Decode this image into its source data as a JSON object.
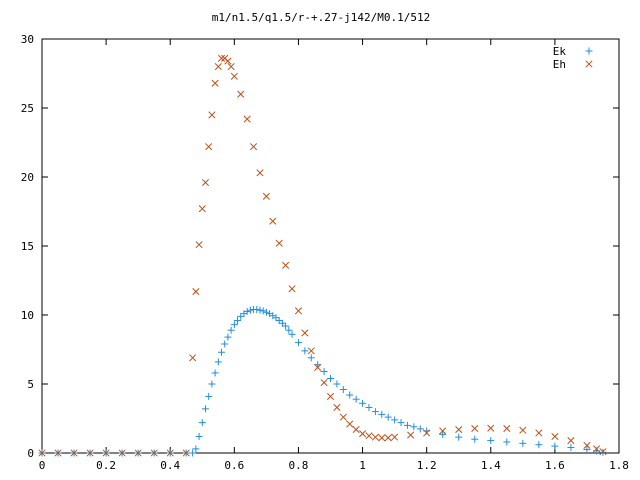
{
  "chart_data": {
    "type": "scatter",
    "title": "m1/n1.5/q1.5/r-+.27-j142/M0.1/512",
    "xlabel": "",
    "ylabel": "",
    "xlim": [
      0,
      1.8
    ],
    "ylim": [
      0,
      30
    ],
    "x_ticks": [
      0,
      0.2,
      0.4,
      0.6,
      0.8,
      1,
      1.2,
      1.4,
      1.6,
      1.8
    ],
    "x_tick_labels": [
      "0",
      "0.2",
      "0.4",
      "0.6",
      "0.8",
      "1",
      "1.2",
      "1.4",
      "1.6",
      "1.8"
    ],
    "y_ticks": [
      0,
      5,
      10,
      15,
      20,
      25,
      30
    ],
    "y_tick_labels": [
      "0",
      "5",
      "10",
      "15",
      "20",
      "25",
      "30"
    ],
    "grid": false,
    "legend_position": "top-right",
    "series": [
      {
        "name": "Ek",
        "marker": "plus",
        "color": "#1f8fe0",
        "x": [
          0.0,
          0.05,
          0.1,
          0.15,
          0.2,
          0.25,
          0.3,
          0.35,
          0.4,
          0.45,
          0.47,
          0.48,
          0.49,
          0.5,
          0.51,
          0.52,
          0.53,
          0.54,
          0.55,
          0.56,
          0.57,
          0.58,
          0.59,
          0.6,
          0.61,
          0.62,
          0.63,
          0.64,
          0.65,
          0.66,
          0.67,
          0.68,
          0.69,
          0.7,
          0.71,
          0.72,
          0.73,
          0.74,
          0.75,
          0.76,
          0.77,
          0.78,
          0.8,
          0.82,
          0.84,
          0.86,
          0.88,
          0.9,
          0.92,
          0.94,
          0.96,
          0.98,
          1.0,
          1.02,
          1.04,
          1.06,
          1.08,
          1.1,
          1.12,
          1.14,
          1.16,
          1.18,
          1.2,
          1.25,
          1.3,
          1.35,
          1.4,
          1.45,
          1.5,
          1.55,
          1.6,
          1.65,
          1.7,
          1.73,
          1.75
        ],
        "y": [
          0,
          0,
          0,
          0,
          0,
          0,
          0,
          0,
          0,
          0,
          0,
          0.3,
          1.2,
          2.2,
          3.2,
          4.1,
          5.0,
          5.8,
          6.6,
          7.3,
          7.9,
          8.4,
          8.9,
          9.3,
          9.6,
          9.9,
          10.1,
          10.25,
          10.35,
          10.4,
          10.4,
          10.35,
          10.3,
          10.2,
          10.1,
          9.95,
          9.8,
          9.6,
          9.4,
          9.2,
          8.9,
          8.6,
          8.0,
          7.4,
          6.9,
          6.4,
          5.9,
          5.4,
          5.0,
          4.6,
          4.2,
          3.9,
          3.6,
          3.3,
          3.0,
          2.8,
          2.6,
          2.4,
          2.2,
          2.0,
          1.9,
          1.75,
          1.6,
          1.35,
          1.15,
          1.0,
          0.9,
          0.8,
          0.7,
          0.6,
          0.5,
          0.4,
          0.25,
          0.15,
          0.05
        ]
      },
      {
        "name": "Eh",
        "marker": "cross",
        "color": "#c04f15",
        "x": [
          0.0,
          0.05,
          0.1,
          0.15,
          0.2,
          0.25,
          0.3,
          0.35,
          0.4,
          0.45,
          0.47,
          0.48,
          0.49,
          0.5,
          0.51,
          0.52,
          0.53,
          0.54,
          0.55,
          0.56,
          0.57,
          0.58,
          0.59,
          0.6,
          0.62,
          0.64,
          0.66,
          0.68,
          0.7,
          0.72,
          0.74,
          0.76,
          0.78,
          0.8,
          0.82,
          0.84,
          0.86,
          0.88,
          0.9,
          0.92,
          0.94,
          0.96,
          0.98,
          1.0,
          1.02,
          1.04,
          1.06,
          1.08,
          1.1,
          1.15,
          1.2,
          1.25,
          1.3,
          1.35,
          1.4,
          1.45,
          1.5,
          1.55,
          1.6,
          1.65,
          1.7,
          1.73,
          1.75
        ],
        "y": [
          0,
          0,
          0,
          0,
          0,
          0,
          0,
          0,
          0,
          0,
          6.9,
          11.7,
          15.1,
          17.7,
          19.6,
          22.2,
          24.5,
          26.8,
          28.0,
          28.6,
          28.6,
          28.4,
          28.0,
          27.3,
          26.0,
          24.2,
          22.2,
          20.3,
          18.6,
          16.8,
          15.2,
          13.6,
          11.9,
          10.3,
          8.7,
          7.4,
          6.2,
          5.1,
          4.1,
          3.3,
          2.6,
          2.1,
          1.7,
          1.4,
          1.25,
          1.15,
          1.1,
          1.1,
          1.15,
          1.3,
          1.45,
          1.6,
          1.7,
          1.78,
          1.8,
          1.78,
          1.65,
          1.45,
          1.2,
          0.9,
          0.55,
          0.3,
          0.1
        ]
      }
    ]
  }
}
